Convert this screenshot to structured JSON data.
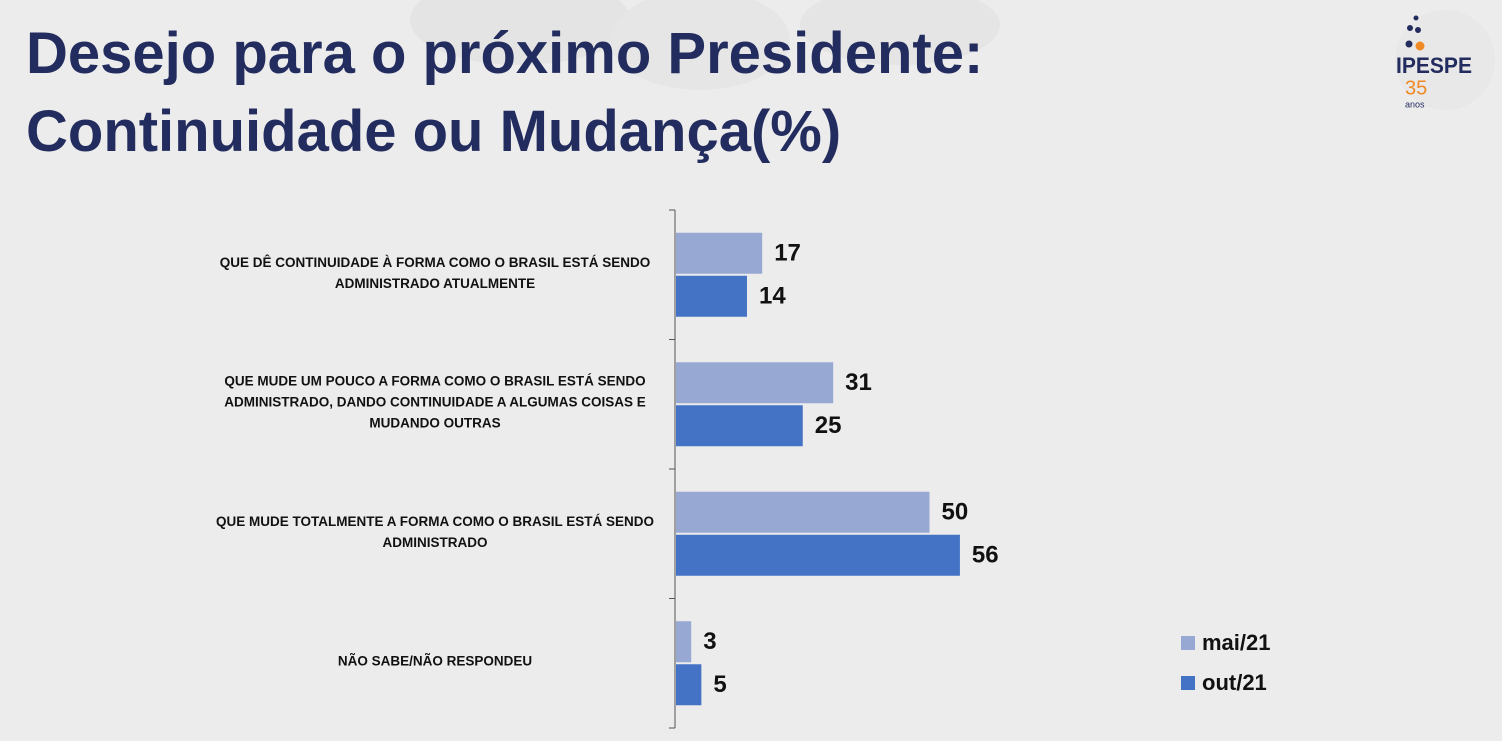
{
  "chart_data": {
    "type": "bar",
    "orientation": "horizontal",
    "title": [
      "Desejo para o próximo Presidente:",
      "Continuidade ou Mudança(%)"
    ],
    "logo": {
      "name": "IPESPE",
      "number": "35",
      "caption": "anos"
    },
    "categories": [
      "QUE DÊ CONTINUIDADE À FORMA COMO O BRASIL ESTÁ SENDO ADMINISTRADO ATUALMENTE",
      "QUE MUDE UM POUCO A FORMA COMO O BRASIL ESTÁ SENDO ADMINISTRADO, DANDO CONTINUIDADE A ALGUMAS COISAS E MUDANDO OUTRAS",
      "QUE MUDE TOTALMENTE A FORMA COMO O BRASIL ESTÁ SENDO ADMINISTRADO",
      "NÃO SABE/NÃO RESPONDEU"
    ],
    "series": [
      {
        "name": "mai/21",
        "color": "#97a8d3",
        "values": [
          17,
          31,
          50,
          3
        ]
      },
      {
        "name": "out/21",
        "color": "#4472c4",
        "values": [
          14,
          25,
          56,
          5
        ]
      }
    ],
    "legend": "bottom-right"
  }
}
